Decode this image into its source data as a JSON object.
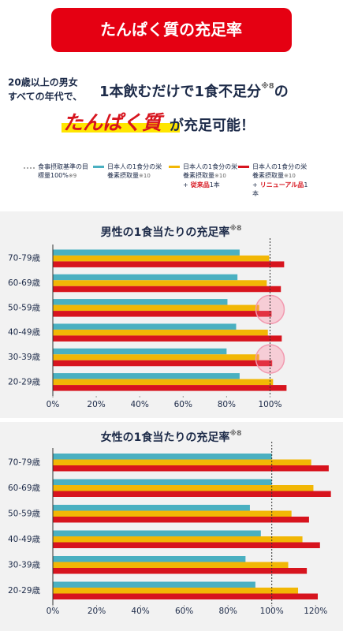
{
  "header": {
    "title": "たんぱく質の充足率",
    "lead_line1": "20歳以上の男女",
    "lead_line2": "すべての年代で、",
    "headline": "1本飲むだけで1食不足分",
    "headline_note": "※8",
    "headline_particle": "の",
    "highlight": "たんぱく質",
    "headline_end": "が充足可能！"
  },
  "legend": {
    "reference_label": "食事摂取基準の目標量100%",
    "reference_note": "※9"
  },
  "chart_data": [
    {
      "type": "bar",
      "orientation": "horizontal",
      "title": "男性の1食当たりの充足率",
      "title_note": "※8",
      "categories": [
        "70-79歳",
        "60-69歳",
        "50-59歳",
        "40-49歳",
        "30-39歳",
        "20-29歳"
      ],
      "series": [
        {
          "name": "日本人の1食分の栄養素摂取量",
          "note": "※10",
          "color": "#4ab0c1",
          "values": [
            86,
            85,
            80.4,
            84.4,
            80,
            86
          ]
        },
        {
          "name": "日本人の1食分の栄養素摂取量",
          "note": "※10",
          "addition_sign": "+",
          "addition_item": "従来品",
          "addition_count": "1本",
          "color": "#f2b705",
          "values": [
            99.6,
            98.5,
            95,
            99,
            95,
            101.4
          ]
        },
        {
          "name": "日本人の1食分の栄養素摂取量",
          "note": "※10",
          "addition_sign": "+",
          "addition_item": "リニューアル品",
          "addition_count": "1本",
          "color": "#d7141e",
          "values": [
            106.5,
            105,
            100.7,
            105.4,
            101,
            107.6
          ]
        }
      ],
      "xlim": [
        0,
        110
      ],
      "xticks": [
        {
          "value": 0,
          "label": "0%"
        },
        {
          "value": 20,
          "label": "20%"
        },
        {
          "value": 40,
          "label": "40%"
        },
        {
          "value": 60,
          "label": "60%"
        },
        {
          "value": 80,
          "label": "80%"
        },
        {
          "value": 100,
          "label": "100%"
        }
      ],
      "reference": 100,
      "highlight_rows": [
        2,
        4
      ]
    },
    {
      "type": "bar",
      "orientation": "horizontal",
      "title": "女性の1食当たりの充足率",
      "title_note": "※8",
      "categories": [
        "70-79歳",
        "60-69歳",
        "50-59歳",
        "40-49歳",
        "30-39歳",
        "20-29歳"
      ],
      "series": [
        {
          "color": "#4ab0c1",
          "values": [
            100,
            100,
            90,
            95,
            88,
            92.5
          ]
        },
        {
          "color": "#f2b705",
          "values": [
            118,
            119,
            109,
            114,
            107.5,
            112
          ]
        },
        {
          "color": "#d7141e",
          "values": [
            126,
            127,
            117,
            122,
            116,
            121
          ]
        }
      ],
      "xlim": [
        0,
        130
      ],
      "xticks": [
        {
          "value": 0,
          "label": "0%"
        },
        {
          "value": 20,
          "label": "20%"
        },
        {
          "value": 40,
          "label": "40%"
        },
        {
          "value": 60,
          "label": "60%"
        },
        {
          "value": 80,
          "label": "80%"
        },
        {
          "value": 100,
          "label": "100%"
        },
        {
          "value": 120,
          "label": "120%"
        }
      ],
      "reference": 100,
      "highlight_rows": []
    }
  ]
}
